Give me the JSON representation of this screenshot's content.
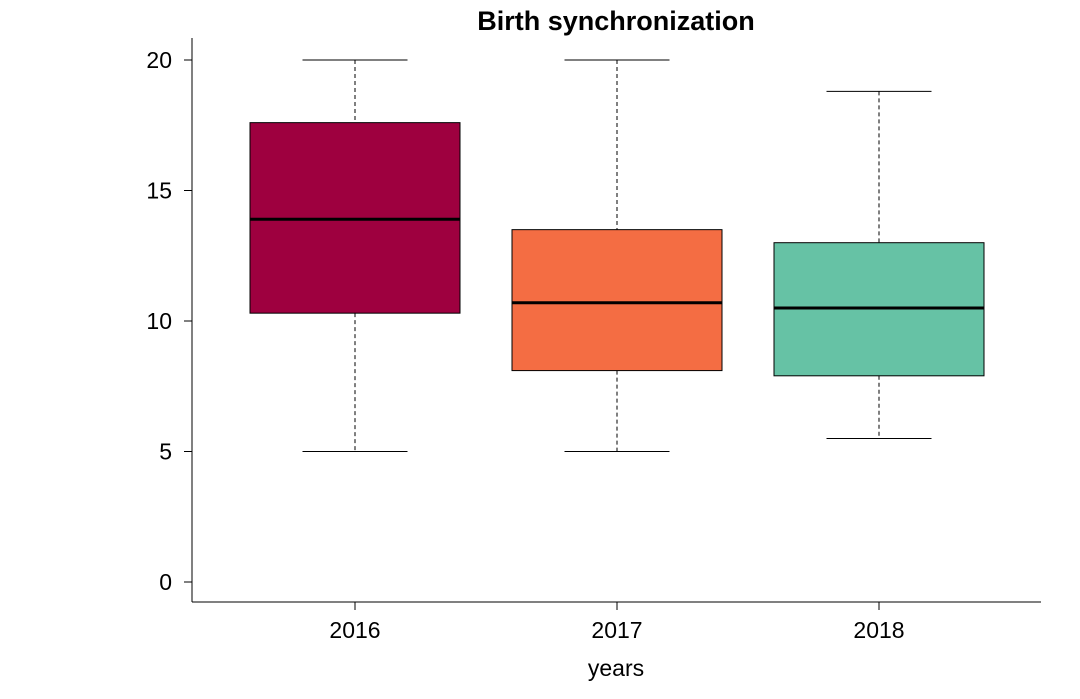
{
  "chart_data": {
    "type": "boxplot",
    "title": "Birth synchronization",
    "xlabel": "years",
    "ylabel": "",
    "categories": [
      "2016",
      "2017",
      "2018"
    ],
    "ylim": [
      0,
      20
    ],
    "yticks": [
      0,
      5,
      10,
      15,
      20
    ],
    "boxes": [
      {
        "category": "2016",
        "min": 5.0,
        "q1": 10.3,
        "median": 13.9,
        "q3": 17.6,
        "max": 20.0,
        "color": "#9e003f"
      },
      {
        "category": "2017",
        "min": 5.0,
        "q1": 8.1,
        "median": 10.7,
        "q3": 13.5,
        "max": 20.0,
        "color": "#f46d43"
      },
      {
        "category": "2018",
        "min": 5.5,
        "q1": 7.9,
        "median": 10.5,
        "q3": 13.0,
        "max": 18.8,
        "color": "#66c2a5"
      }
    ],
    "grid": false,
    "legend": "none"
  }
}
